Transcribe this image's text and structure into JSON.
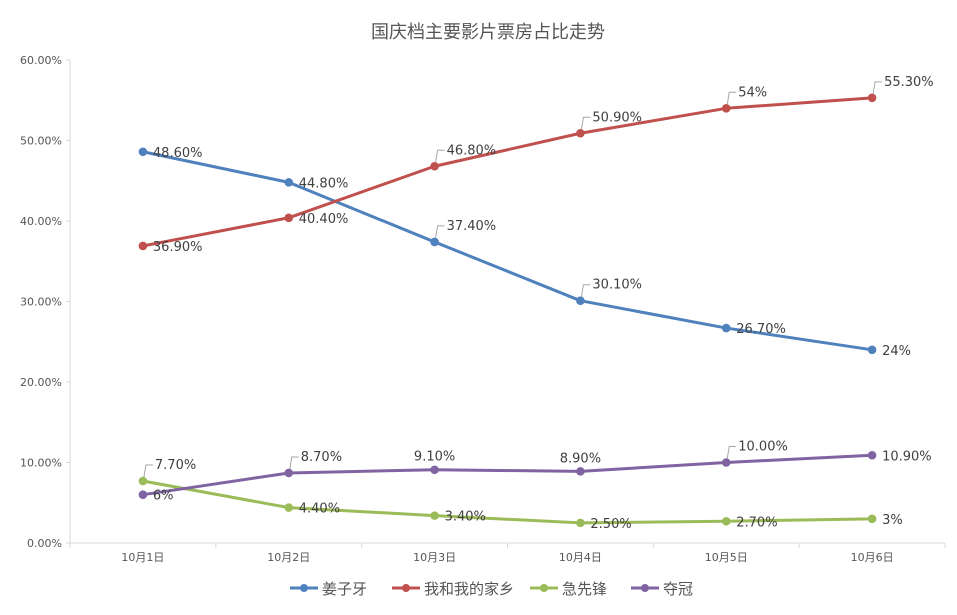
{
  "chart_data": {
    "type": "line",
    "title": "国庆档主要影片票房占比走势",
    "xlabel": "",
    "ylabel": "",
    "categories": [
      "10月1日",
      "10月2日",
      "10月3日",
      "10月4日",
      "10月5日",
      "10月6日"
    ],
    "y_tick_labels": [
      "0.00%",
      "10.00%",
      "20.00%",
      "30.00%",
      "40.00%",
      "50.00%",
      "60.00%"
    ],
    "ylim": [
      0,
      60
    ],
    "grid": false,
    "legend_position": "bottom",
    "series": [
      {
        "name": "姜子牙",
        "color": "#4f81bd",
        "values": [
          48.6,
          44.8,
          37.4,
          30.1,
          26.7,
          24.0
        ],
        "labels": [
          "48.60%",
          "44.80%",
          "37.40%",
          "30.10%",
          "26.70%",
          "24%"
        ]
      },
      {
        "name": "我和我的家乡",
        "color": "#c0504d",
        "values": [
          36.9,
          40.4,
          46.8,
          50.9,
          54.0,
          55.3
        ],
        "labels": [
          "36.90%",
          "40.40%",
          "46.80%",
          "50.90%",
          "54%",
          "55.30%"
        ]
      },
      {
        "name": "急先锋",
        "color": "#9bbb59",
        "values": [
          7.7,
          4.4,
          3.4,
          2.5,
          2.7,
          3.0
        ],
        "labels": [
          "7.70%",
          "4.40%",
          "3.40%",
          "2.50%",
          "2.70%",
          "3%"
        ]
      },
      {
        "name": "夺冠",
        "color": "#8064a2",
        "values": [
          6.0,
          8.7,
          9.1,
          8.9,
          10.0,
          10.9
        ],
        "labels": [
          "6%",
          "8.70%",
          "9.10%",
          "8.90%",
          "10.00%",
          "10.90%"
        ]
      }
    ]
  }
}
